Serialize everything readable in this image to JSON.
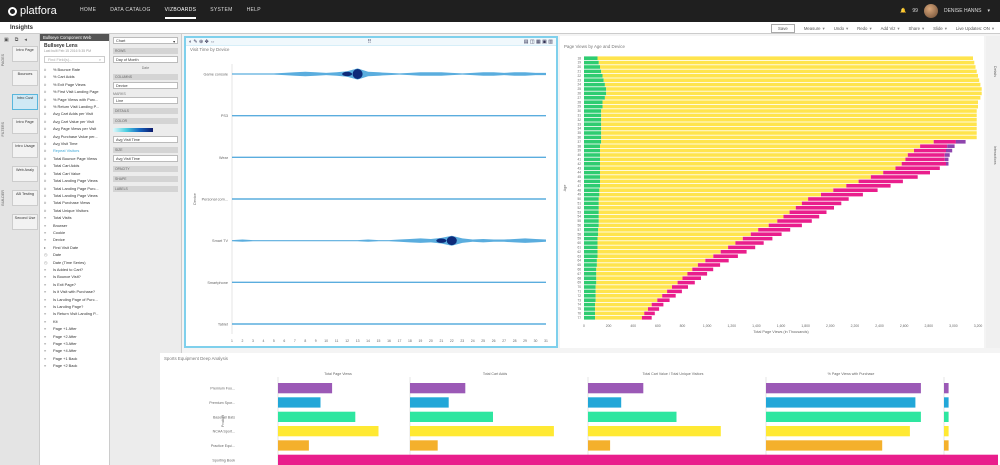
{
  "app": {
    "logo": "platfora",
    "nav": [
      "HOME",
      "DATA CATALOG",
      "VIZBOARDS",
      "SYSTEM",
      "HELP"
    ],
    "active_nav": "VIZBOARDS",
    "notif_count": "99",
    "username": "DENISE HANNS"
  },
  "page_title": "Insights",
  "toolbar": {
    "save": "Save",
    "items": [
      "Measure",
      "Undo",
      "Redo",
      "Add Viz",
      "Share",
      "Slide",
      "Live Updates: ON"
    ]
  },
  "pages_column": {
    "vtabs": [
      "PAGES",
      "FILTERS",
      "BUILDER"
    ],
    "pages": [
      "Intro Page",
      "Bounces",
      "Intro Cust",
      "Intro Page",
      "Intro Usage",
      "Web Analy",
      "AB Testing",
      "Second Use"
    ],
    "selected_index": 2
  },
  "lens_panel": {
    "header": "Bullseye Component Web",
    "name": "Bullseye Lens",
    "subtitle": "Last built Feb 15 2016 5:35 PM",
    "badge": "Web",
    "search_placeholder": "Find Field(s)...",
    "fields": [
      {
        "icon": "#",
        "label": "% Bounce Rate"
      },
      {
        "icon": "#",
        "label": "% Cart Adds"
      },
      {
        "icon": "#",
        "label": "% Exit Page Views"
      },
      {
        "icon": "#",
        "label": "% First Visit Landing Page"
      },
      {
        "icon": "#",
        "label": "% Page Views with Purc..."
      },
      {
        "icon": "#",
        "label": "% Return Visit Landing P..."
      },
      {
        "icon": "#",
        "label": "Avg Cart Adds per Visit"
      },
      {
        "icon": "#",
        "label": "Avg Cart Value per Visit"
      },
      {
        "icon": "#",
        "label": "Avg Page Views per Visit"
      },
      {
        "icon": "#",
        "label": "Avg Purchase Value per..."
      },
      {
        "icon": "#",
        "label": "Avg Visit Time"
      },
      {
        "icon": "#",
        "label": "Repeat Visitors",
        "highlight": true
      },
      {
        "icon": "#",
        "label": "Total Bounce Page Views"
      },
      {
        "icon": "#",
        "label": "Total Cart Adds"
      },
      {
        "icon": "#",
        "label": "Total Cart Value"
      },
      {
        "icon": "#",
        "label": "Total Landing Page Views"
      },
      {
        "icon": "#",
        "label": "Total Landing Page Purc..."
      },
      {
        "icon": "#",
        "label": "Total Landing Page Views"
      },
      {
        "icon": "#",
        "label": "Total Purchase Views"
      },
      {
        "icon": "#",
        "label": "Total Unique Visitors"
      },
      {
        "icon": "≡",
        "label": "Total Visits"
      },
      {
        "icon": "≡",
        "label": "Browser"
      },
      {
        "icon": "≡",
        "label": "Cookie"
      },
      {
        "icon": "≡",
        "label": "Device"
      },
      {
        "icon": "▸",
        "label": "First Visit Date"
      },
      {
        "icon": "◷",
        "label": "Date"
      },
      {
        "icon": "◷",
        "label": "Date (Time Series)"
      },
      {
        "icon": "≡",
        "label": "Is Added to Cart?"
      },
      {
        "icon": "≡",
        "label": "Is Bounce Visit?"
      },
      {
        "icon": "≡",
        "label": "Is Exit Page?"
      },
      {
        "icon": "≡",
        "label": "Is it Visit with Purchase?"
      },
      {
        "icon": "≡",
        "label": "Is Landing Page of Purc..."
      },
      {
        "icon": "≡",
        "label": "Is Landing Page?"
      },
      {
        "icon": "≡",
        "label": "Is Return Visit Landing P..."
      },
      {
        "icon": "≡",
        "label": "Kit"
      },
      {
        "icon": "≡",
        "label": "Page +1 After"
      },
      {
        "icon": "≡",
        "label": "Page +2 After"
      },
      {
        "icon": "≡",
        "label": "Page +3 After"
      },
      {
        "icon": "≡",
        "label": "Page +4 After"
      },
      {
        "icon": "≡",
        "label": "Page +1 Back"
      },
      {
        "icon": "≡",
        "label": "Page +2 Back"
      }
    ]
  },
  "builder_panel": {
    "chart_type": "Chart",
    "rows_label": "ROWS",
    "rows_value": "Day of Month",
    "rows_sub": "Date",
    "columns_label": "COLUMNS",
    "columns_value": "Device",
    "marks_label": "MARKS",
    "marks_value": "Line",
    "details_label": "DETAILS",
    "color_label": "COLOR",
    "color_value": "Avg Visit Time",
    "size_label": "SIZE",
    "size_value": "Avg Visit Time",
    "opacity_label": "OPACITY",
    "shape_label": "SHAPE",
    "labels_label": "LABELS"
  },
  "panel_a": {
    "title": "Visit Time by Device",
    "xlabel": "May 2015",
    "ylabel": "Device"
  },
  "panel_b": {
    "title": "Page Views by Age and Device",
    "xlabel": "Total Page Views (in Thousands)",
    "ylabel": "Age"
  },
  "panel_c": {
    "title": "Sports Equipment Deep Analysis",
    "ylabel": "Product"
  },
  "right_strip": [
    "Details",
    "Interactions"
  ],
  "chart_data": [
    {
      "type": "area",
      "title": "Visit Time by Device",
      "xlabel": "May 2015",
      "ylabel": "Device",
      "categories": [
        "Game console",
        "PS3",
        "Wear",
        "Personal com...",
        "Smart TV",
        "Smartphone",
        "Tablet"
      ],
      "x": [
        1,
        2,
        3,
        4,
        5,
        6,
        7,
        8,
        9,
        10,
        11,
        12,
        13,
        14,
        15,
        16,
        17,
        18,
        19,
        20,
        21,
        22,
        23,
        24,
        25,
        26,
        27,
        28,
        29,
        30,
        31
      ],
      "colors": {
        "scale": [
          "#e0f7fa",
          "#4dd0e1",
          "#1565c0",
          "#0d1a6b"
        ]
      },
      "series": [
        {
          "values": [
            0,
            0,
            0,
            0,
            0,
            1,
            2,
            3,
            2,
            1,
            2,
            4,
            9,
            3,
            2,
            1,
            0,
            1,
            2,
            2,
            2,
            1,
            0,
            1,
            2,
            2,
            1,
            2,
            2,
            1,
            1
          ]
        },
        {
          "values": [
            0.2,
            0.2,
            0.2,
            0.2,
            0.2,
            0.2,
            0.2,
            0.2,
            0.2,
            0.2,
            0.2,
            0.2,
            0.2,
            0.2,
            0.2,
            0.2,
            0.2,
            0.2,
            0.2,
            0.2,
            0.2,
            0.2,
            0.2,
            0.2,
            0.2,
            0.2,
            0.2,
            0.2,
            0.2,
            0.2,
            0.2
          ]
        },
        {
          "values": [
            0.2,
            0.2,
            0.2,
            0.2,
            0.2,
            0.2,
            0.2,
            0.2,
            0.2,
            0.2,
            0.2,
            0.2,
            0.2,
            0.2,
            0.2,
            0.2,
            0.2,
            0.2,
            0.2,
            0.2,
            0.2,
            0.2,
            0.2,
            0.2,
            0.2,
            0.2,
            0.2,
            0.2,
            0.2,
            0.2,
            0.2
          ]
        },
        {
          "values": [
            0.2,
            0.2,
            0.2,
            0.2,
            0.2,
            0.2,
            0.2,
            0.2,
            0.2,
            0.2,
            0.2,
            0.2,
            0.2,
            0.2,
            0.2,
            0.2,
            0.2,
            0.2,
            0.2,
            0.2,
            0.2,
            0.2,
            0.2,
            0.2,
            0.2,
            0.2,
            0.2,
            0.2,
            0.2,
            0.2,
            0.2
          ]
        },
        {
          "values": [
            0,
            1,
            0,
            0,
            0,
            0,
            0,
            0,
            0,
            0,
            0,
            0,
            0,
            1,
            0,
            0,
            1,
            2,
            3,
            2,
            4,
            8,
            3,
            1,
            2,
            1,
            1,
            2,
            3,
            2,
            1
          ]
        },
        {
          "values": [
            0.2,
            0.2,
            0.2,
            0.2,
            0.2,
            0.2,
            0.2,
            0.2,
            0.2,
            0.2,
            0.2,
            0.2,
            0.2,
            0.2,
            0.2,
            0.2,
            0.2,
            0.2,
            0.2,
            0.2,
            0.2,
            0.2,
            0.2,
            0.2,
            0.2,
            0.2,
            0.2,
            0.2,
            0.2,
            0.2,
            0.2
          ]
        },
        {
          "values": [
            0.2,
            0.2,
            0.2,
            0.2,
            0.2,
            0.2,
            0.2,
            0.2,
            0.2,
            0.2,
            0.2,
            0.2,
            0.2,
            0.2,
            0.2,
            0.2,
            0.2,
            0.2,
            0.2,
            0.2,
            0.2,
            0.2,
            0.2,
            0.2,
            0.2,
            0.2,
            0.2,
            0.2,
            0.2,
            0.2,
            0.2
          ]
        }
      ]
    },
    {
      "type": "bar",
      "title": "Page Views by Age and Device",
      "xlabel": "Total Page Views (in Thousands)",
      "ylabel": "Age",
      "xticks": [
        "0",
        "200",
        "400",
        "600",
        "800",
        "1,000",
        "1,200",
        "1,400",
        "1,600",
        "1,800",
        "2,000",
        "2,200",
        "2,400",
        "2,600",
        "2,800",
        "3,000",
        "3,200"
      ],
      "xlim": [
        0,
        3200
      ],
      "categories": [
        "18",
        "19",
        "20",
        "21",
        "22",
        "23",
        "24",
        "25",
        "26",
        "27",
        "28",
        "29",
        "30",
        "31",
        "32",
        "33",
        "34",
        "35",
        "36",
        "37",
        "38",
        "39",
        "40",
        "41",
        "42",
        "43",
        "44",
        "45",
        "46",
        "47",
        "48",
        "49",
        "50",
        "51",
        "52",
        "53",
        "54",
        "55",
        "56",
        "57",
        "58",
        "59",
        "60",
        "61",
        "62",
        "63",
        "64",
        "65",
        "66",
        "67",
        "68",
        "69",
        "70",
        "71",
        "72",
        "73",
        "74",
        "75",
        "76",
        "77"
      ],
      "series": [
        {
          "name": "",
          "color": "#2ecc71",
          "values": [
            110,
            120,
            130,
            140,
            150,
            160,
            170,
            180,
            180,
            170,
            150,
            150,
            140,
            140,
            140,
            140,
            140,
            140,
            140,
            140,
            130,
            130,
            130,
            130,
            130,
            130,
            130,
            130,
            130,
            130,
            125,
            125,
            120,
            120,
            120,
            120,
            120,
            120,
            120,
            115,
            115,
            110,
            110,
            110,
            110,
            110,
            105,
            105,
            100,
            100,
            100,
            100,
            95,
            95,
            95,
            95,
            90,
            90,
            90,
            90
          ]
        },
        {
          "name": "",
          "color": "#ffe44d",
          "values": [
            3050,
            3050,
            3050,
            3050,
            3050,
            3050,
            3050,
            3050,
            3050,
            3050,
            3050,
            3050,
            3050,
            3050,
            3050,
            3050,
            3050,
            3050,
            3050,
            2700,
            2600,
            2550,
            2500,
            2480,
            2450,
            2400,
            2300,
            2200,
            2100,
            2000,
            1900,
            1800,
            1700,
            1650,
            1600,
            1550,
            1500,
            1450,
            1380,
            1300,
            1240,
            1180,
            1120,
            1060,
            1000,
            940,
            880,
            820,
            780,
            740,
            700,
            660,
            620,
            580,
            540,
            500,
            460,
            430,
            400,
            380
          ]
        },
        {
          "name": "",
          "color": "#e91e8c",
          "values": [
            0,
            0,
            0,
            0,
            0,
            0,
            0,
            0,
            0,
            0,
            0,
            0,
            0,
            0,
            0,
            0,
            0,
            0,
            0,
            180,
            220,
            260,
            300,
            320,
            360,
            360,
            380,
            380,
            360,
            360,
            360,
            340,
            330,
            320,
            310,
            300,
            290,
            280,
            270,
            260,
            250,
            240,
            230,
            220,
            210,
            200,
            190,
            180,
            170,
            160,
            150,
            140,
            130,
            120,
            110,
            100,
            95,
            90,
            85,
            80
          ]
        },
        {
          "name": "",
          "color": "#8e44ad",
          "values": [
            0,
            0,
            0,
            0,
            0,
            0,
            0,
            0,
            0,
            0,
            0,
            0,
            0,
            0,
            0,
            0,
            0,
            0,
            0,
            80,
            60,
            50,
            40,
            30,
            20,
            0,
            0,
            0,
            0,
            0,
            0,
            0,
            0,
            0,
            0,
            0,
            0,
            0,
            0,
            0,
            0,
            0,
            0,
            0,
            0,
            0,
            0,
            0,
            0,
            0,
            0,
            0,
            0,
            0,
            0,
            0,
            0,
            0,
            0,
            0
          ]
        }
      ]
    },
    {
      "type": "bar",
      "title": "Sports Equipment Deep Analysis",
      "ylabel": "Product",
      "categories": [
        "Premium Foo...",
        "Premium Spor...",
        "Baseball Bats",
        "NCAA Sport...",
        "Practice Equi...",
        "Sporting Book"
      ],
      "facets": [
        {
          "name": "Total Page Views",
          "values": [
            70,
            55,
            100,
            130,
            40,
            340
          ],
          "xlim": [
            0,
            150
          ]
        },
        {
          "name": "Total Cart Adds",
          "values": [
            50,
            35,
            75,
            130,
            25,
            340
          ],
          "xlim": [
            0,
            150
          ]
        },
        {
          "name": "Total Cart Value / Total Unique Visitors",
          "values": [
            50,
            30,
            80,
            120,
            20,
            340
          ],
          "xlim": [
            0,
            150
          ]
        },
        {
          "name": "% Page Views with Purchase",
          "values": [
            140,
            135,
            140,
            130,
            105,
            340
          ],
          "xlim": [
            0,
            150
          ]
        },
        {
          "name": "",
          "values": [
            15,
            15,
            15,
            15,
            15,
            15
          ],
          "xlim": [
            0,
            150
          ]
        }
      ],
      "colors": [
        "#9b59b6",
        "#22a7d8",
        "#2ee6a0",
        "#ffe933",
        "#f4b02c",
        "#e91e8c"
      ]
    }
  ]
}
